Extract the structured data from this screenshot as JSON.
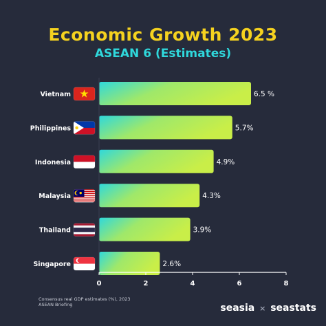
{
  "header": {
    "title": "Economic Growth 2023",
    "subtitle": "ASEAN 6 (Estimates)"
  },
  "chart_data": {
    "type": "bar",
    "orientation": "horizontal",
    "title": "Economic Growth 2023",
    "subtitle": "ASEAN 6 (Estimates)",
    "categories": [
      "Vietnam",
      "Philippines",
      "Indonesia",
      "Malaysia",
      "Thailand",
      "Singapore"
    ],
    "values": [
      6.5,
      5.7,
      4.9,
      4.3,
      3.9,
      2.6
    ],
    "data_labels": [
      "6.5 %",
      "5.7%",
      "4.9%",
      "4.3%",
      "3.9%",
      "2.6%"
    ],
    "flags": [
      "vietnam-flag-icon",
      "philippines-flag-icon",
      "indonesia-flag-icon",
      "malaysia-flag-icon",
      "thailand-flag-icon",
      "singapore-flag-icon"
    ],
    "xlim": [
      0,
      8
    ],
    "xticks": [
      0,
      2,
      4,
      6,
      8
    ],
    "xlabel": "",
    "ylabel": "",
    "grid": false,
    "legend": "none",
    "bar_gradient": [
      "#2fd8dc",
      "#c9ee48"
    ],
    "axis_color": "#ffffff"
  },
  "footer": {
    "source_line1": "Consensus real GDP estimates (%), 2023",
    "source_line2": "ASEAN Briefing",
    "brand_left": "seasia",
    "brand_sep": "×",
    "brand_right": "seastats"
  },
  "colors": {
    "background": "#262b3b",
    "title": "#f5d21f",
    "subtitle": "#2fd8dc",
    "text": "#ffffff"
  }
}
